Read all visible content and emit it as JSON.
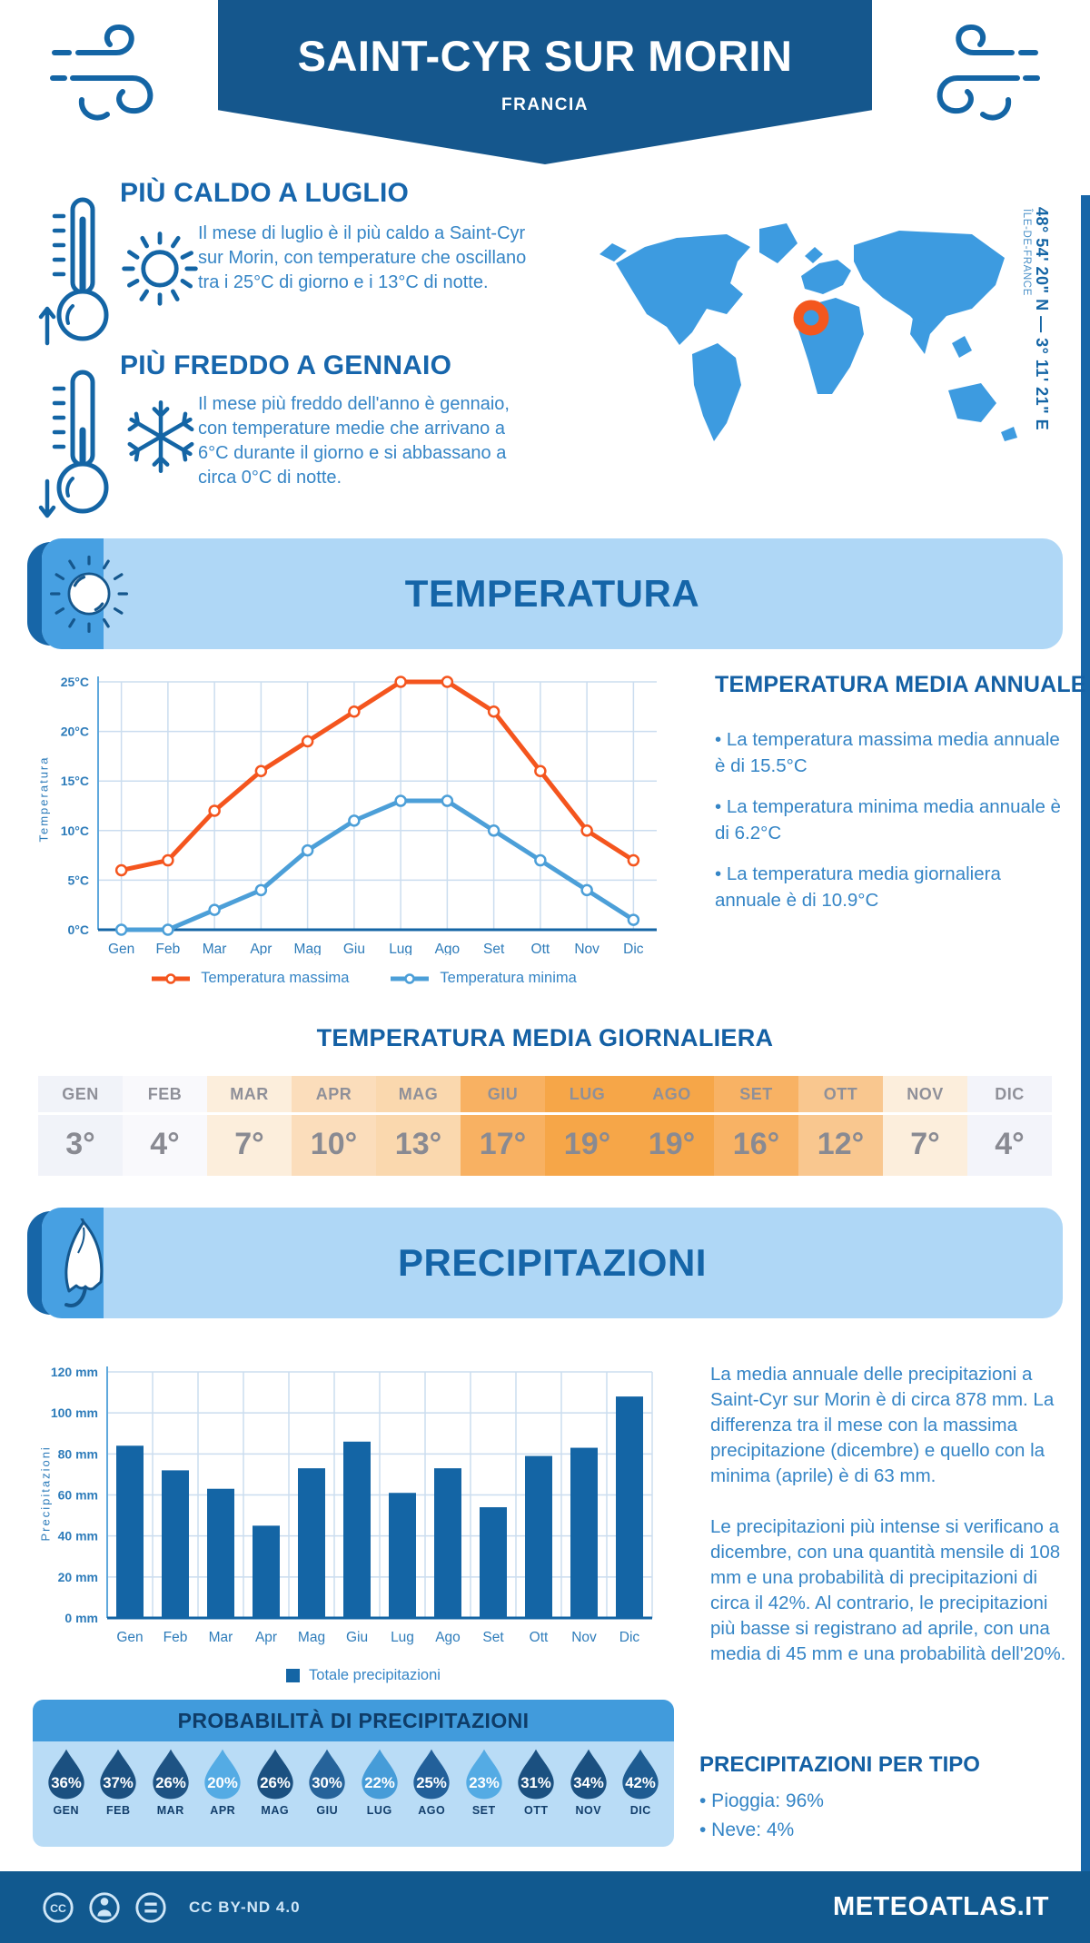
{
  "header": {
    "title": "SAINT-CYR SUR MORIN",
    "subtitle": "FRANCIA"
  },
  "highlights": {
    "hot": {
      "title": "PIÙ CALDO A LUGLIO",
      "text": "Il mese di luglio è il più caldo a Saint-Cyr sur Morin, con temperature che oscillano tra i 25°C di giorno e i 13°C di notte."
    },
    "cold": {
      "title": "PIÙ FREDDO A GENNAIO",
      "text": "Il mese più freddo dell'anno è gennaio, con temperature medie che arrivano a 6°C durante il giorno e si abbassano a circa 0°C di notte."
    }
  },
  "location": {
    "coordinates": "48° 54' 20\" N — 3° 11' 21\" E",
    "region": "ÎLE-DE-FRANCE",
    "marker_color": "#F4571E",
    "map_color": "#3D9BE0"
  },
  "temperature_section": {
    "title": "TEMPERATURA",
    "annual": {
      "title": "TEMPERATURA MEDIA ANNUALE",
      "bullets": [
        "• La temperatura massima media annuale è di 15.5°C",
        "• La temperatura minima media annuale è di 6.2°C",
        "• La temperatura media giornaliera annuale è di 10.9°C"
      ]
    },
    "daily_table": {
      "title": "TEMPERATURA MEDIA GIORNALIERA",
      "months": [
        "GEN",
        "FEB",
        "MAR",
        "APR",
        "MAG",
        "GIU",
        "LUG",
        "AGO",
        "SET",
        "OTT",
        "NOV",
        "DIC"
      ],
      "values": [
        "3°",
        "4°",
        "7°",
        "10°",
        "13°",
        "17°",
        "19°",
        "19°",
        "16°",
        "12°",
        "7°",
        "4°"
      ],
      "cell_colors": [
        "#F1F3F9",
        "#F9F9FC",
        "#FCEEDC",
        "#FBDDBB",
        "#FAD8AE",
        "#F8B162",
        "#F6A648",
        "#F6A648",
        "#F8B264",
        "#F9C78F",
        "#FCEEDC",
        "#F3F4FA"
      ]
    }
  },
  "precipitation_section": {
    "title": "PRECIPITAZIONI",
    "text1": "La media annuale delle precipitazioni a Saint-Cyr sur Morin è di circa 878 mm. La differenza tra il mese con la massima precipitazione (dicembre) e quello con la minima (aprile) è di 63 mm.",
    "text2": "Le precipitazioni più intense si verificano a dicembre, con una quantità mensile di 108 mm e una probabilità di precipitazioni di circa il 42%. Al contrario, le precipitazioni più basse si registrano ad aprile, con una media di 45 mm e una probabilità dell'20%.",
    "probability": {
      "title": "PROBABILITÀ DI PRECIPITAZIONI",
      "months": [
        "GEN",
        "FEB",
        "MAR",
        "APR",
        "MAG",
        "GIU",
        "LUG",
        "AGO",
        "SET",
        "OTT",
        "NOV",
        "DIC"
      ],
      "values": [
        "36%",
        "37%",
        "26%",
        "20%",
        "26%",
        "30%",
        "22%",
        "25%",
        "23%",
        "31%",
        "34%",
        "42%"
      ],
      "drop_colors": [
        "#1B5080",
        "#1B5080",
        "#1E5384",
        "#54ABE4",
        "#1B5080",
        "#26639A",
        "#469CD8",
        "#22609A",
        "#54ABE4",
        "#1B5080",
        "#1B5080",
        "#1E5C92"
      ]
    },
    "per_type": {
      "title": "PRECIPITAZIONI PER TIPO",
      "bullets": [
        "• Pioggia: 96%",
        "• Neve: 4%"
      ]
    }
  },
  "chart_data": [
    {
      "type": "line",
      "title": "Temperatura",
      "x": [
        "Gen",
        "Feb",
        "Mar",
        "Apr",
        "Mag",
        "Giu",
        "Lug",
        "Ago",
        "Set",
        "Ott",
        "Nov",
        "Dic"
      ],
      "ylabel": "Temperatura",
      "ylim": [
        0,
        25
      ],
      "ystep": 5,
      "ytick_suffix": "°C",
      "grid": true,
      "legend_position": "bottom",
      "series": [
        {
          "name": "Temperatura massima",
          "color": "#F4551E",
          "values": [
            6,
            7,
            12,
            16,
            19,
            22,
            25,
            25,
            22,
            16,
            10,
            7
          ]
        },
        {
          "name": "Temperatura minima",
          "color": "#4C9FD8",
          "values": [
            0,
            0,
            2,
            4,
            8,
            11,
            13,
            13,
            10,
            7,
            4,
            1
          ]
        }
      ]
    },
    {
      "type": "bar",
      "title": "Precipitazioni",
      "x": [
        "Gen",
        "Feb",
        "Mar",
        "Apr",
        "Mag",
        "Giu",
        "Lug",
        "Ago",
        "Set",
        "Ott",
        "Nov",
        "Dic"
      ],
      "ylabel": "Precipitazioni",
      "ylim": [
        0,
        120
      ],
      "ystep": 20,
      "ytick_suffix": " mm",
      "grid": true,
      "legend_position": "bottom",
      "series": [
        {
          "name": "Totale precipitazioni",
          "color": "#1465A5",
          "values": [
            84,
            72,
            63,
            45,
            73,
            86,
            61,
            73,
            54,
            79,
            83,
            108
          ]
        }
      ]
    }
  ],
  "footer": {
    "license": "CC BY-ND 4.0",
    "site": "METEOATLAS.IT"
  },
  "colors": {
    "banner": "#15578D",
    "accent_dark": "#1465A5",
    "accent_medium": "#47A0E2",
    "section_banner_bg": "#AFD7F6",
    "footer_bg": "#11598F"
  }
}
